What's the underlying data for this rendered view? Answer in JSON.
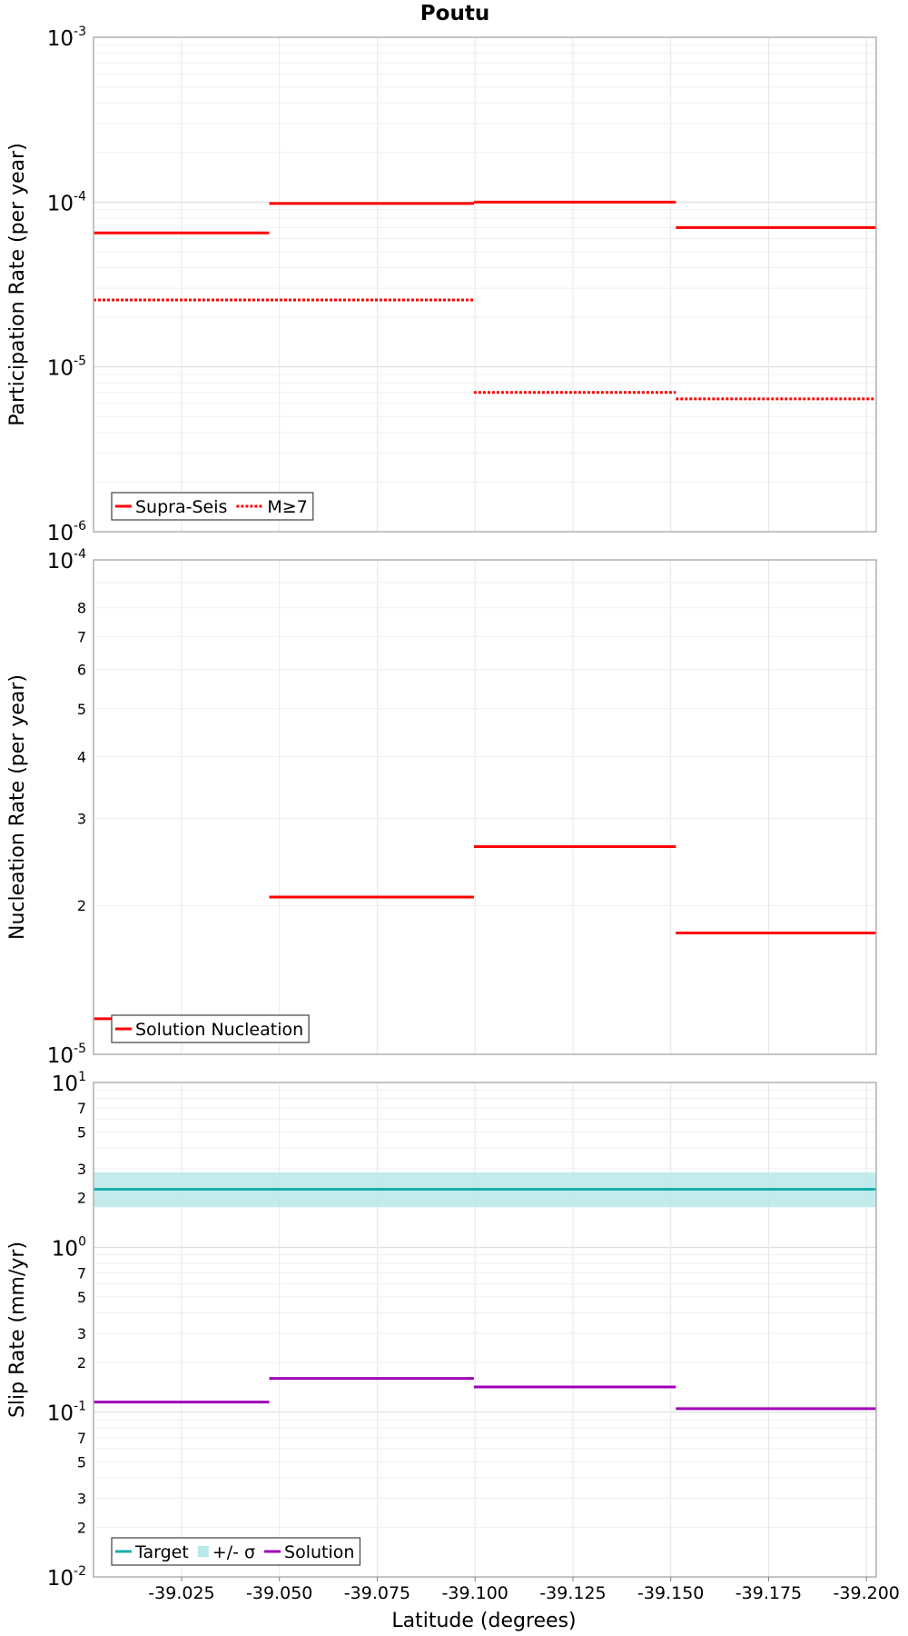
{
  "title": "Poutu",
  "xlabel": "Latitude (degrees)",
  "x_ticks": [
    {
      "value": -39.025,
      "label": "-39.025"
    },
    {
      "value": -39.05,
      "label": "-39.050"
    },
    {
      "value": -39.075,
      "label": "-39.075"
    },
    {
      "value": -39.1,
      "label": "-39.100"
    },
    {
      "value": -39.125,
      "label": "-39.125"
    },
    {
      "value": -39.15,
      "label": "-39.150"
    },
    {
      "value": -39.175,
      "label": "-39.175"
    },
    {
      "value": -39.2,
      "label": "-39.200"
    }
  ],
  "colors": {
    "red": "#ff0000",
    "teal": "#1aadad",
    "band": "#b8e8e8",
    "purple": "#a100b8",
    "grid": "#e8e8e8",
    "frame": "#b0b0b0"
  },
  "chart_data": [
    {
      "type": "line",
      "title": "Poutu",
      "ylabel": "Participation Rate (per year)",
      "yscale": "log",
      "xlim": [
        -39.0025,
        -39.2025
      ],
      "ylim": [
        1e-06,
        0.001
      ],
      "y_major_ticks": [
        {
          "value": 0.001,
          "base": "10",
          "exp": "-3"
        },
        {
          "value": 0.0001,
          "base": "10",
          "exp": "-4"
        },
        {
          "value": 1e-05,
          "base": "10",
          "exp": "-5"
        },
        {
          "value": 1e-06,
          "base": "10",
          "exp": "-6"
        }
      ],
      "y_minor_labels": [],
      "series": [
        {
          "name": "Supra-Seis",
          "color": "#ff0000",
          "style": "solid",
          "segments": [
            {
              "x0": -39.0025,
              "x1": -39.0474,
              "y": 6.5e-05
            },
            {
              "x0": -39.0474,
              "x1": -39.0997,
              "y": 9.8e-05
            },
            {
              "x0": -39.0997,
              "x1": -39.1513,
              "y": 0.0001
            },
            {
              "x0": -39.1513,
              "x1": -39.2025,
              "y": 7e-05
            }
          ]
        },
        {
          "name": "M≥7",
          "color": "#ff0000",
          "style": "dotted",
          "segments": [
            {
              "x0": -39.0025,
              "x1": -39.0997,
              "y": 2.55e-05
            },
            {
              "x0": -39.0997,
              "x1": -39.1513,
              "y": 7e-06
            },
            {
              "x0": -39.1513,
              "x1": -39.2025,
              "y": 6.4e-06
            }
          ]
        }
      ],
      "legend": {
        "position": "bottom-left",
        "entries": [
          {
            "label": "Supra-Seis",
            "kind": "solid",
            "color": "#ff0000"
          },
          {
            "label": "M≥7",
            "kind": "dotted",
            "color": "#ff0000"
          }
        ]
      }
    },
    {
      "type": "line",
      "ylabel": "Nucleation Rate (per year)",
      "yscale": "log",
      "xlim": [
        -39.0025,
        -39.2025
      ],
      "ylim": [
        1e-05,
        0.0001
      ],
      "y_major_ticks": [
        {
          "value": 0.0001,
          "base": "10",
          "exp": "-4"
        },
        {
          "value": 1e-05,
          "base": "10",
          "exp": "-5"
        }
      ],
      "y_minor_labels": [
        {
          "value": 2e-05,
          "label": "2"
        },
        {
          "value": 3e-05,
          "label": "3"
        },
        {
          "value": 4e-05,
          "label": "4"
        },
        {
          "value": 5e-05,
          "label": "5"
        },
        {
          "value": 6e-05,
          "label": "6"
        },
        {
          "value": 7e-05,
          "label": "7"
        },
        {
          "value": 8e-05,
          "label": "8"
        }
      ],
      "series": [
        {
          "name": "Solution Nucleation",
          "color": "#ff0000",
          "style": "solid",
          "segments": [
            {
              "x0": -39.0025,
              "x1": -39.0474,
              "y": 1.18e-05
            },
            {
              "x0": -39.0474,
              "x1": -39.0997,
              "y": 2.08e-05
            },
            {
              "x0": -39.0997,
              "x1": -39.1513,
              "y": 2.63e-05
            },
            {
              "x0": -39.1513,
              "x1": -39.2025,
              "y": 1.76e-05
            }
          ]
        }
      ],
      "legend": {
        "position": "bottom-left",
        "entries": [
          {
            "label": "Solution Nucleation",
            "kind": "solid",
            "color": "#ff0000"
          }
        ]
      }
    },
    {
      "type": "line",
      "ylabel": "Slip Rate (mm/yr)",
      "yscale": "log",
      "xlim": [
        -39.0025,
        -39.2025
      ],
      "ylim": [
        0.01,
        10
      ],
      "y_major_ticks": [
        {
          "value": 10,
          "base": "10",
          "exp": "1"
        },
        {
          "value": 1,
          "base": "10",
          "exp": "0"
        },
        {
          "value": 0.1,
          "base": "10",
          "exp": "-1"
        },
        {
          "value": 0.01,
          "base": "10",
          "exp": "-2"
        }
      ],
      "y_minor_labels": [
        {
          "value": 7,
          "label": "7"
        },
        {
          "value": 5,
          "label": "5"
        },
        {
          "value": 3,
          "label": "3"
        },
        {
          "value": 2,
          "label": "2"
        },
        {
          "value": 0.7,
          "label": "7"
        },
        {
          "value": 0.5,
          "label": "5"
        },
        {
          "value": 0.3,
          "label": "3"
        },
        {
          "value": 0.2,
          "label": "2"
        },
        {
          "value": 0.07,
          "label": "7"
        },
        {
          "value": 0.05,
          "label": "5"
        },
        {
          "value": 0.03,
          "label": "3"
        },
        {
          "value": 0.02,
          "label": "2"
        }
      ],
      "band": {
        "name": "+/- σ",
        "color": "#b8e8e8",
        "segments": [
          {
            "x0": -39.0025,
            "x1": -39.2025,
            "y_low": 1.75,
            "y_high": 2.85
          }
        ]
      },
      "series": [
        {
          "name": "Target",
          "color": "#1aadad",
          "style": "solid",
          "segments": [
            {
              "x0": -39.0025,
              "x1": -39.2025,
              "y": 2.25
            }
          ]
        },
        {
          "name": "Solution",
          "color": "#a100b8",
          "style": "solid",
          "segments": [
            {
              "x0": -39.0025,
              "x1": -39.0474,
              "y": 0.115
            },
            {
              "x0": -39.0474,
              "x1": -39.0997,
              "y": 0.16
            },
            {
              "x0": -39.0997,
              "x1": -39.1513,
              "y": 0.142
            },
            {
              "x0": -39.1513,
              "x1": -39.2025,
              "y": 0.105
            }
          ]
        }
      ],
      "legend": {
        "position": "bottom-left",
        "entries": [
          {
            "label": "Target",
            "kind": "solid",
            "color": "#1aadad"
          },
          {
            "label": "+/- σ",
            "kind": "band",
            "color": "#b8e8e8"
          },
          {
            "label": "Solution",
            "kind": "solid",
            "color": "#a100b8"
          }
        ]
      }
    }
  ]
}
